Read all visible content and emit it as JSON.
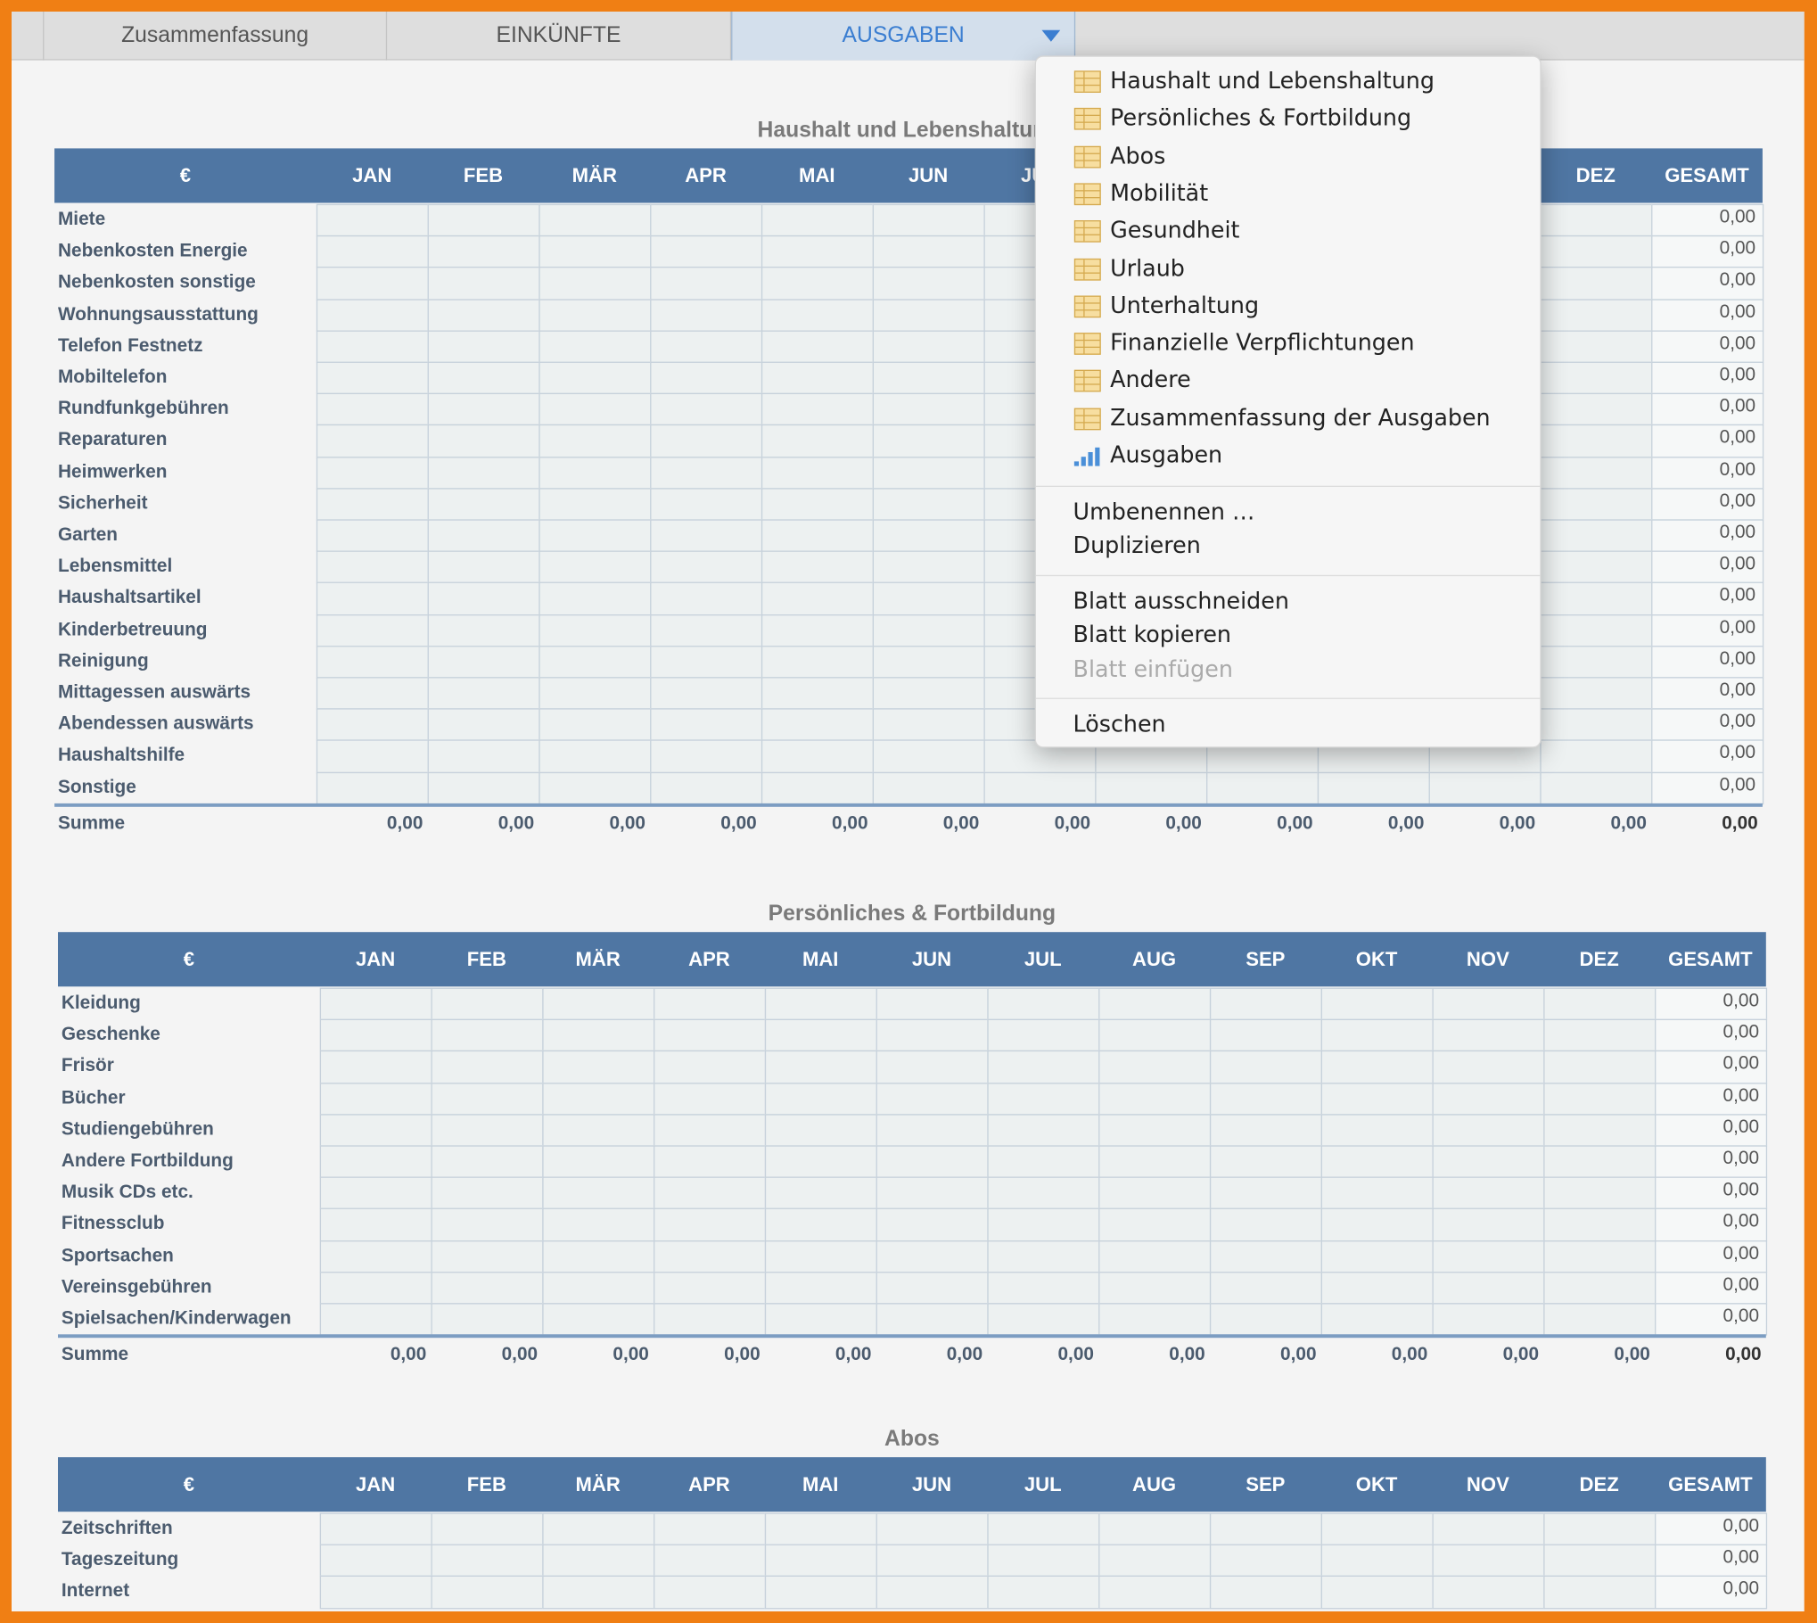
{
  "tabs": [
    "Zusammenfassung",
    "EINKÜNFTE",
    "AUSGABEN"
  ],
  "active_tab": 2,
  "columns": [
    "€",
    "JAN",
    "FEB",
    "MÄR",
    "APR",
    "MAI",
    "JUN",
    "JUL",
    "AUG",
    "SEP",
    "OKT",
    "NOV",
    "DEZ",
    "GESAMT"
  ],
  "tables": [
    {
      "title": "Haushalt und Lebenshaltung",
      "rows": [
        {
          "label": "Miete",
          "total": "0,00"
        },
        {
          "label": "Nebenkosten Energie",
          "total": "0,00"
        },
        {
          "label": "Nebenkosten sonstige",
          "total": "0,00"
        },
        {
          "label": "Wohnungsausstattung",
          "total": "0,00"
        },
        {
          "label": "Telefon Festnetz",
          "total": "0,00"
        },
        {
          "label": "Mobiltelefon",
          "total": "0,00"
        },
        {
          "label": "Rundfunkgebühren",
          "total": "0,00"
        },
        {
          "label": "Reparaturen",
          "total": "0,00"
        },
        {
          "label": "Heimwerken",
          "total": "0,00"
        },
        {
          "label": "Sicherheit",
          "total": "0,00"
        },
        {
          "label": "Garten",
          "total": "0,00"
        },
        {
          "label": "Lebensmittel",
          "total": "0,00"
        },
        {
          "label": "Haushaltsartikel",
          "total": "0,00"
        },
        {
          "label": "Kinderbetreuung",
          "total": "0,00"
        },
        {
          "label": "Reinigung",
          "total": "0,00"
        },
        {
          "label": "Mittagessen auswärts",
          "total": "0,00"
        },
        {
          "label": "Abendessen auswärts",
          "total": "0,00"
        },
        {
          "label": "Haushaltshilfe",
          "total": "0,00"
        },
        {
          "label": "Sonstige",
          "total": "0,00"
        }
      ],
      "sum": {
        "label": "Summe",
        "values": [
          "0,00",
          "0,00",
          "0,00",
          "0,00",
          "0,00",
          "0,00",
          "0,00",
          "0,00",
          "0,00",
          "0,00",
          "0,00",
          "0,00",
          "0,00"
        ]
      }
    },
    {
      "title": "Persönliches & Fortbildung",
      "rows": [
        {
          "label": "Kleidung",
          "total": "0,00"
        },
        {
          "label": "Geschenke",
          "total": "0,00"
        },
        {
          "label": "Frisör",
          "total": "0,00"
        },
        {
          "label": "Bücher",
          "total": "0,00"
        },
        {
          "label": "Studiengebühren",
          "total": "0,00"
        },
        {
          "label": "Andere Fortbildung",
          "total": "0,00"
        },
        {
          "label": "Musik CDs etc.",
          "total": "0,00"
        },
        {
          "label": "Fitnessclub",
          "total": "0,00"
        },
        {
          "label": "Sportsachen",
          "total": "0,00"
        },
        {
          "label": "Vereinsgebühren",
          "total": "0,00"
        },
        {
          "label": "Spielsachen/Kinderwagen",
          "total": "0,00"
        }
      ],
      "sum": {
        "label": "Summe",
        "values": [
          "0,00",
          "0,00",
          "0,00",
          "0,00",
          "0,00",
          "0,00",
          "0,00",
          "0,00",
          "0,00",
          "0,00",
          "0,00",
          "0,00",
          "0,00"
        ]
      }
    },
    {
      "title": "Abos",
      "rows": [
        {
          "label": "Zeitschriften",
          "total": "0,00"
        },
        {
          "label": "Tageszeitung",
          "total": "0,00"
        },
        {
          "label": "Internet",
          "total": "0,00"
        }
      ]
    }
  ],
  "menu": {
    "sheets": [
      {
        "label": "Haushalt und Lebenshaltung",
        "icon": "table"
      },
      {
        "label": "Persönliches & Fortbildung",
        "icon": "table"
      },
      {
        "label": "Abos",
        "icon": "table"
      },
      {
        "label": "Mobilität",
        "icon": "table"
      },
      {
        "label": "Gesundheit",
        "icon": "table"
      },
      {
        "label": "Urlaub",
        "icon": "table"
      },
      {
        "label": "Unterhaltung",
        "icon": "table"
      },
      {
        "label": "Finanzielle Verpflichtungen",
        "icon": "table"
      },
      {
        "label": "Andere",
        "icon": "table"
      },
      {
        "label": "Zusammenfassung der Ausgaben",
        "icon": "table"
      },
      {
        "label": "Ausgaben",
        "icon": "chart"
      }
    ],
    "actions": [
      [
        {
          "label": "Umbenennen …",
          "enabled": true
        },
        {
          "label": "Duplizieren",
          "enabled": true
        }
      ],
      [
        {
          "label": "Blatt ausschneiden",
          "enabled": true
        },
        {
          "label": "Blatt kopieren",
          "enabled": true
        },
        {
          "label": "Blatt einfügen",
          "enabled": false
        }
      ],
      [
        {
          "label": "Löschen",
          "enabled": true
        }
      ]
    ]
  }
}
